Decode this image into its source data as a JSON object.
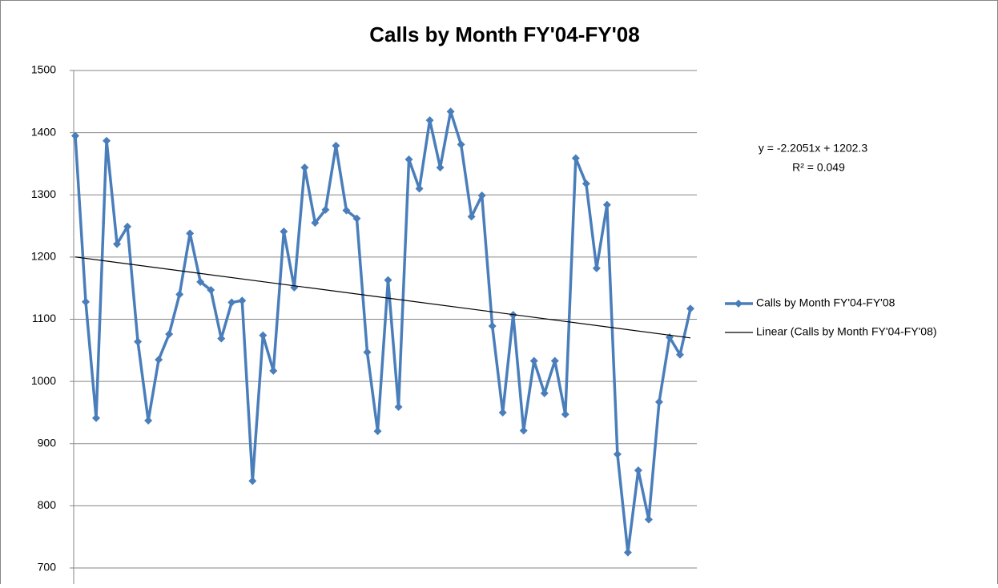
{
  "chart_data": {
    "type": "line",
    "title": "Calls by Month FY'04-FY'08",
    "categories": [
      null,
      null,
      null,
      null,
      null,
      null,
      null,
      null,
      null,
      null,
      null,
      null,
      null,
      null,
      null,
      null,
      null,
      null,
      null,
      null,
      null,
      null,
      null,
      null,
      null,
      null,
      null,
      null,
      null,
      null,
      null,
      null,
      null,
      null,
      null,
      null,
      null,
      null,
      null,
      null,
      null,
      null,
      null,
      null,
      null,
      null,
      null,
      null,
      null,
      null,
      null,
      null,
      null,
      null,
      null,
      null,
      null,
      null,
      null,
      null
    ],
    "series": [
      {
        "name": "Calls by Month FY'04-FY'08",
        "color": "#4a7ebb",
        "values": [
          1395,
          1128,
          941,
          1387,
          1221,
          1249,
          1064,
          937,
          1035,
          1076,
          1140,
          1238,
          1160,
          1147,
          1069,
          1127,
          1130,
          840,
          1074,
          1017,
          1241,
          1151,
          1344,
          1255,
          1276,
          1379,
          1275,
          1262,
          1047,
          920,
          1163,
          959,
          1357,
          1310,
          1420,
          1344,
          1434,
          1381,
          1265,
          1299,
          1089,
          950,
          1107,
          921,
          1033,
          981,
          1033,
          947,
          1359,
          1318,
          1182,
          1284,
          883,
          725,
          857,
          778,
          967,
          1071,
          1043,
          1117
        ]
      }
    ],
    "trendline": {
      "name": "Linear (Calls by Month FY'04-FY'08)",
      "color": "#000000",
      "slope": -2.2051,
      "intercept": 1202.3,
      "equation": "y = -2.2051x + 1202.3",
      "r_squared": "R² = 0.049"
    },
    "ylim": [
      700,
      1500
    ],
    "yticks": [
      700,
      800,
      900,
      1000,
      1100,
      1200,
      1300,
      1400,
      1500
    ],
    "grid": true,
    "legend": "right"
  }
}
